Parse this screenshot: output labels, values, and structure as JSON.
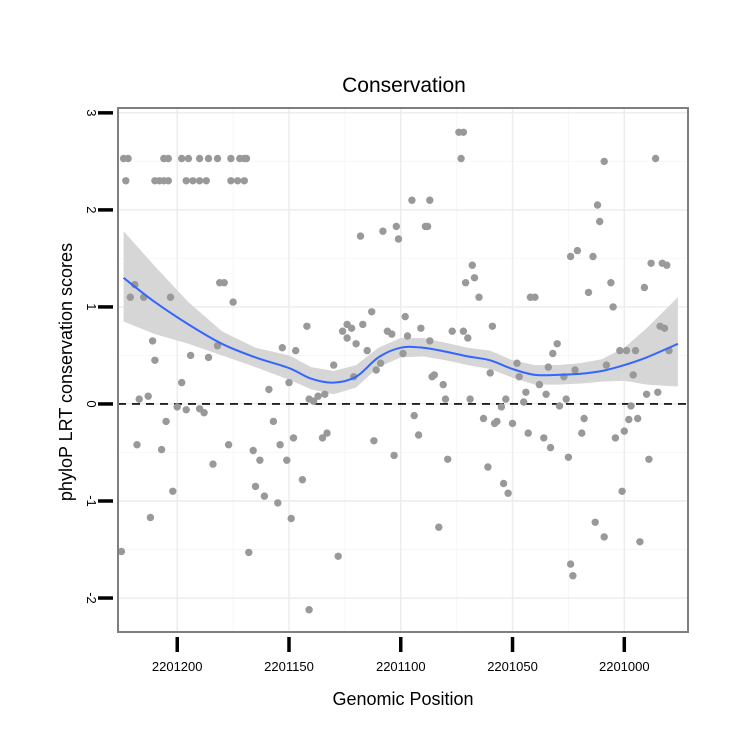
{
  "colors": {
    "points": "#999999",
    "smooth_line": "#3366ff",
    "confidence_band": "#d6d6d6",
    "grid_major": "#ececec",
    "grid_minor": "#f7f7f7",
    "panel_border": "#7f7f7f",
    "reference_line": "#000000"
  },
  "chart_data": {
    "type": "scatter",
    "title": "Conservation",
    "xlabel": "Genomic Position",
    "ylabel": "phyloP LRT conservation scores",
    "x_reversed": true,
    "xlim": [
      2201226.5,
      2200971.5
    ],
    "ylim": [
      -2.35,
      3.05
    ],
    "x_ticks": [
      2201200,
      2201150,
      2201100,
      2201050,
      2201000
    ],
    "x_tick_labels": [
      "2201200",
      "2201150",
      "2201100",
      "2201050",
      "2201000"
    ],
    "y_ticks": [
      -2,
      -1,
      0,
      1,
      2,
      3
    ],
    "y_tick_labels": [
      "-2",
      "-1",
      "0",
      "1",
      "2",
      "3"
    ],
    "reference_line_y": 0,
    "smooth": {
      "method": "loess",
      "x": [
        2201224,
        2201210,
        2201195,
        2201180,
        2201165,
        2201150,
        2201140,
        2201130,
        2201120,
        2201110,
        2201100,
        2201090,
        2201080,
        2201070,
        2201060,
        2201050,
        2201040,
        2201030,
        2201020,
        2201010,
        2201000,
        2200990,
        2200976
      ],
      "y": [
        1.3,
        1.05,
        0.82,
        0.62,
        0.48,
        0.37,
        0.26,
        0.22,
        0.28,
        0.48,
        0.58,
        0.58,
        0.54,
        0.49,
        0.45,
        0.36,
        0.3,
        0.3,
        0.31,
        0.34,
        0.4,
        0.48,
        0.62
      ],
      "lower": [
        0.85,
        0.72,
        0.62,
        0.5,
        0.38,
        0.25,
        0.15,
        0.1,
        0.17,
        0.38,
        0.48,
        0.49,
        0.45,
        0.4,
        0.36,
        0.27,
        0.2,
        0.2,
        0.21,
        0.23,
        0.24,
        0.2,
        0.18
      ],
      "upper": [
        1.78,
        1.42,
        1.05,
        0.75,
        0.58,
        0.5,
        0.38,
        0.34,
        0.4,
        0.58,
        0.68,
        0.68,
        0.63,
        0.58,
        0.55,
        0.45,
        0.4,
        0.4,
        0.42,
        0.46,
        0.58,
        0.78,
        1.1
      ]
    },
    "points": [
      [
        2201224,
        2.53
      ],
      [
        2201222,
        2.53
      ],
      [
        2201223,
        2.3
      ],
      [
        2201221,
        1.1
      ],
      [
        2201219,
        1.23
      ],
      [
        2201218,
        -0.42
      ],
      [
        2201217,
        0.05
      ],
      [
        2201215,
        1.1
      ],
      [
        2201225,
        -1.52
      ],
      [
        2201213,
        0.08
      ],
      [
        2201212,
        -1.17
      ],
      [
        2201211,
        0.65
      ],
      [
        2201210,
        0.45
      ],
      [
        2201207,
        -0.47
      ],
      [
        2201205,
        -0.18
      ],
      [
        2201202,
        -0.9
      ],
      [
        2201200,
        -0.03
      ],
      [
        2201206,
        2.3
      ],
      [
        2201208,
        2.3
      ],
      [
        2201210,
        2.3
      ],
      [
        2201204,
        2.3
      ],
      [
        2201196,
        2.3
      ],
      [
        2201193,
        2.3
      ],
      [
        2201190,
        2.3
      ],
      [
        2201187,
        2.3
      ],
      [
        2201176,
        2.3
      ],
      [
        2201173,
        2.3
      ],
      [
        2201170,
        2.3
      ],
      [
        2201206,
        2.53
      ],
      [
        2201204,
        2.53
      ],
      [
        2201198,
        2.53
      ],
      [
        2201195,
        2.53
      ],
      [
        2201190,
        2.53
      ],
      [
        2201186,
        2.53
      ],
      [
        2201182,
        2.53
      ],
      [
        2201176,
        2.53
      ],
      [
        2201172,
        2.53
      ],
      [
        2201170,
        2.53
      ],
      [
        2201169,
        2.53
      ],
      [
        2201203,
        1.1
      ],
      [
        2201198,
        0.22
      ],
      [
        2201196,
        -0.06
      ],
      [
        2201194,
        0.5
      ],
      [
        2201190,
        -0.05
      ],
      [
        2201188,
        -0.09
      ],
      [
        2201186,
        0.48
      ],
      [
        2201184,
        -0.62
      ],
      [
        2201182,
        0.6
      ],
      [
        2201181,
        1.25
      ],
      [
        2201179,
        1.25
      ],
      [
        2201177,
        -0.42
      ],
      [
        2201175,
        1.05
      ],
      [
        2201168,
        -1.53
      ],
      [
        2201166,
        -0.48
      ],
      [
        2201165,
        -0.85
      ],
      [
        2201163,
        -0.58
      ],
      [
        2201161,
        -0.95
      ],
      [
        2201159,
        0.15
      ],
      [
        2201157,
        -0.18
      ],
      [
        2201155,
        -1.02
      ],
      [
        2201154,
        -0.42
      ],
      [
        2201153,
        0.58
      ],
      [
        2201151,
        -0.58
      ],
      [
        2201150,
        0.22
      ],
      [
        2201149,
        -1.18
      ],
      [
        2201148,
        -0.35
      ],
      [
        2201147,
        0.55
      ],
      [
        2201144,
        -0.78
      ],
      [
        2201142,
        0.8
      ],
      [
        2201141,
        0.05
      ],
      [
        2201141,
        -2.12
      ],
      [
        2201139,
        0.03
      ],
      [
        2201137,
        0.08
      ],
      [
        2201135,
        -0.35
      ],
      [
        2201134,
        0.1
      ],
      [
        2201133,
        -0.3
      ],
      [
        2201130,
        0.4
      ],
      [
        2201128,
        -1.57
      ],
      [
        2201126,
        0.75
      ],
      [
        2201124,
        0.82
      ],
      [
        2201124,
        0.68
      ],
      [
        2201122,
        0.78
      ],
      [
        2201121,
        0.28
      ],
      [
        2201120,
        0.62
      ],
      [
        2201118,
        1.73
      ],
      [
        2201117,
        0.82
      ],
      [
        2201115,
        0.55
      ],
      [
        2201113,
        0.95
      ],
      [
        2201112,
        -0.38
      ],
      [
        2201111,
        0.35
      ],
      [
        2201109,
        0.42
      ],
      [
        2201108,
        1.78
      ],
      [
        2201106,
        0.75
      ],
      [
        2201104,
        0.72
      ],
      [
        2201103,
        -0.53
      ],
      [
        2201102,
        1.83
      ],
      [
        2201101,
        1.7
      ],
      [
        2201099,
        0.52
      ],
      [
        2201098,
        0.9
      ],
      [
        2201097,
        0.7
      ],
      [
        2201095,
        2.1
      ],
      [
        2201094,
        -0.12
      ],
      [
        2201092,
        -0.32
      ],
      [
        2201091,
        0.78
      ],
      [
        2201089,
        1.83
      ],
      [
        2201088,
        1.83
      ],
      [
        2201087,
        0.65
      ],
      [
        2201087,
        2.1
      ],
      [
        2201086,
        0.28
      ],
      [
        2201085,
        0.3
      ],
      [
        2201083,
        -1.27
      ],
      [
        2201081,
        0.2
      ],
      [
        2201080,
        0.05
      ],
      [
        2201079,
        -0.57
      ],
      [
        2201077,
        0.75
      ],
      [
        2201074,
        2.8
      ],
      [
        2201073,
        2.53
      ],
      [
        2201072,
        0.75
      ],
      [
        2201072,
        2.8
      ],
      [
        2201071,
        1.25
      ],
      [
        2201070,
        0.68
      ],
      [
        2201069,
        0.05
      ],
      [
        2201068,
        1.43
      ],
      [
        2201067,
        1.3
      ],
      [
        2201065,
        1.1
      ],
      [
        2201063,
        -0.15
      ],
      [
        2201061,
        -0.65
      ],
      [
        2201060,
        0.32
      ],
      [
        2201059,
        0.8
      ],
      [
        2201058,
        -0.2
      ],
      [
        2201057,
        -0.18
      ],
      [
        2201055,
        -0.03
      ],
      [
        2201054,
        -0.82
      ],
      [
        2201053,
        0.05
      ],
      [
        2201052,
        -0.92
      ],
      [
        2201050,
        -0.2
      ],
      [
        2201048,
        0.42
      ],
      [
        2201047,
        0.28
      ],
      [
        2201045,
        0.02
      ],
      [
        2201044,
        0.12
      ],
      [
        2201043,
        -0.3
      ],
      [
        2201042,
        1.1
      ],
      [
        2201040,
        1.1
      ],
      [
        2201038,
        0.2
      ],
      [
        2201036,
        -0.35
      ],
      [
        2201035,
        0.1
      ],
      [
        2201034,
        0.38
      ],
      [
        2201033,
        -0.45
      ],
      [
        2201032,
        0.52
      ],
      [
        2201030,
        0.62
      ],
      [
        2201029,
        -0.02
      ],
      [
        2201027,
        0.28
      ],
      [
        2201026,
        0.05
      ],
      [
        2201025,
        -0.55
      ],
      [
        2201024,
        1.52
      ],
      [
        2201024,
        -1.65
      ],
      [
        2201023,
        -1.77
      ],
      [
        2201022,
        0.35
      ],
      [
        2201021,
        1.58
      ],
      [
        2201019,
        -0.3
      ],
      [
        2201018,
        -0.15
      ],
      [
        2201016,
        1.15
      ],
      [
        2201014,
        1.52
      ],
      [
        2201013,
        -1.22
      ],
      [
        2201012,
        2.05
      ],
      [
        2201011,
        1.88
      ],
      [
        2201009,
        2.5
      ],
      [
        2201009,
        -1.37
      ],
      [
        2201008,
        0.4
      ],
      [
        2201006,
        1.25
      ],
      [
        2201005,
        1.0
      ],
      [
        2201004,
        -0.35
      ],
      [
        2201002,
        0.55
      ],
      [
        2201001,
        -0.9
      ],
      [
        2201000,
        -0.28
      ],
      [
        2200999,
        0.55
      ],
      [
        2200998,
        -0.16
      ],
      [
        2200997,
        -0.02
      ],
      [
        2200996,
        0.3
      ],
      [
        2200994,
        -0.15
      ],
      [
        2200993,
        -1.42
      ],
      [
        2200991,
        1.2
      ],
      [
        2200990,
        0.1
      ],
      [
        2200989,
        -0.57
      ],
      [
        2200988,
        1.45
      ],
      [
        2200986,
        2.53
      ],
      [
        2200985,
        0.12
      ],
      [
        2200984,
        0.8
      ],
      [
        2200983,
        1.45
      ],
      [
        2200982,
        0.78
      ],
      [
        2200981,
        1.43
      ],
      [
        2200980,
        0.55
      ],
      [
        2200995,
        0.55
      ]
    ]
  }
}
